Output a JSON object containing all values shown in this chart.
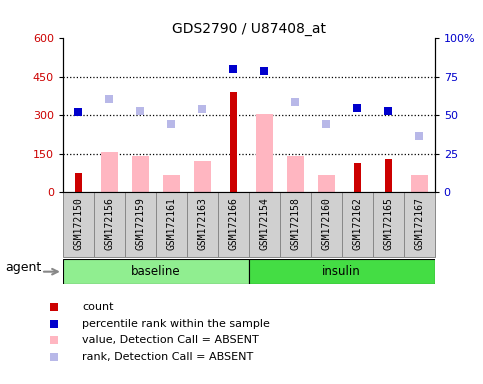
{
  "title": "GDS2790 / U87408_at",
  "samples": [
    "GSM172150",
    "GSM172156",
    "GSM172159",
    "GSM172161",
    "GSM172163",
    "GSM172166",
    "GSM172154",
    "GSM172158",
    "GSM172160",
    "GSM172162",
    "GSM172165",
    "GSM172167"
  ],
  "groups": [
    "baseline",
    "baseline",
    "baseline",
    "baseline",
    "baseline",
    "baseline",
    "insulin",
    "insulin",
    "insulin",
    "insulin",
    "insulin",
    "insulin"
  ],
  "count_values": [
    75,
    0,
    0,
    0,
    0,
    390,
    0,
    0,
    0,
    115,
    130,
    0
  ],
  "percentile_rank": [
    52,
    null,
    null,
    null,
    null,
    80,
    79,
    null,
    null,
    55,
    53,
    null
  ],
  "value_absent": [
    null,
    155,
    140,
    65,
    120,
    null,
    305,
    140,
    65,
    null,
    null,
    65
  ],
  "rank_absent": [
    null,
    365,
    315,
    265,
    325,
    null,
    null,
    350,
    265,
    null,
    null,
    220
  ],
  "ylim_left": [
    0,
    600
  ],
  "ylim_right": [
    0,
    100
  ],
  "yticks_left": [
    0,
    150,
    300,
    450,
    600
  ],
  "yticks_left_labels": [
    "0",
    "150",
    "300",
    "450",
    "600"
  ],
  "yticks_right": [
    0,
    25,
    50,
    75,
    100
  ],
  "yticks_right_labels": [
    "0",
    "25",
    "50",
    "75",
    "100%"
  ],
  "hlines": [
    150,
    300,
    450
  ],
  "baseline_color": "#90EE90",
  "insulin_color": "#44DD44",
  "count_color": "#CC0000",
  "percentile_color": "#0000CC",
  "value_absent_color": "#FFB6C1",
  "rank_absent_color": "#B8B8E8",
  "cell_bg": "#D0D0D0",
  "cell_edge": "#888888",
  "agent_label": "agent",
  "legend_items": [
    {
      "color": "#CC0000",
      "label": "count"
    },
    {
      "color": "#0000CC",
      "label": "percentile rank within the sample"
    },
    {
      "color": "#FFB6C1",
      "label": "value, Detection Call = ABSENT"
    },
    {
      "color": "#B8B8E8",
      "label": "rank, Detection Call = ABSENT"
    }
  ]
}
